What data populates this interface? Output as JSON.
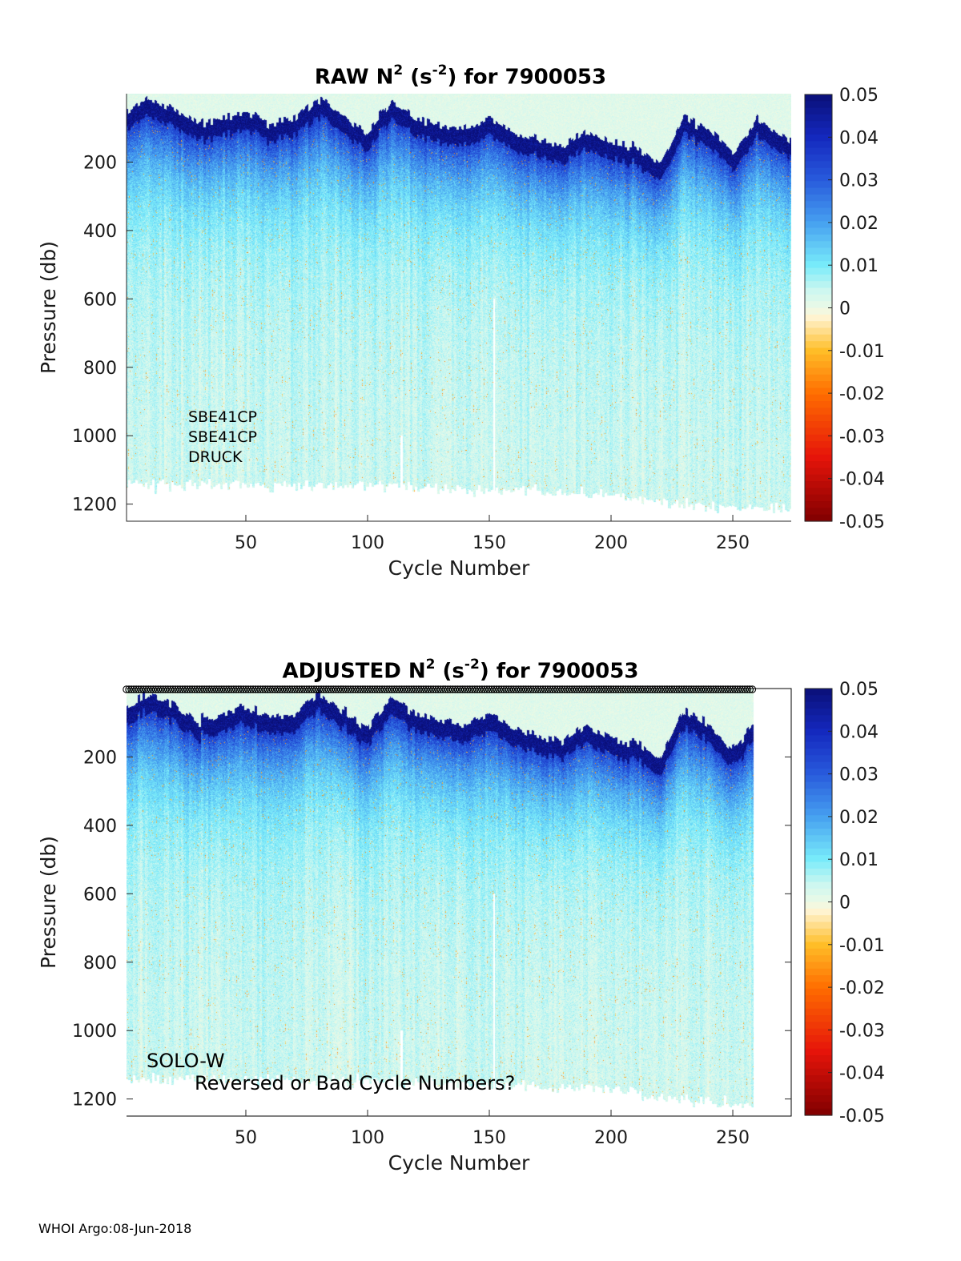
{
  "footer": "WHOI Argo:08-Jun-2018",
  "colorbar": {
    "ticks": [
      "0.05",
      "0.04",
      "0.03",
      "0.02",
      "0.01",
      "0",
      "-0.01",
      "-0.02",
      "-0.03",
      "-0.04",
      "-0.05"
    ],
    "range": [
      -0.05,
      0.05
    ]
  },
  "chart_data": [
    {
      "type": "heatmap",
      "title": "RAW N",
      "title_sup1": "2",
      "title_mid": " (s",
      "title_sup2": "-2",
      "title_end": ") for 7900053",
      "xlabel": "Cycle Number",
      "ylabel": "Pressure (db)",
      "xlim": [
        1,
        274
      ],
      "ylim": [
        0,
        1250
      ],
      "y_reversed": true,
      "xticks": [
        "50",
        "100",
        "150",
        "200",
        "250"
      ],
      "yticks": [
        "200",
        "400",
        "600",
        "800",
        "1000",
        "1200"
      ],
      "color_range": [
        -0.05,
        0.05
      ],
      "colormap": "blue-white-red diverging",
      "data_cycles": [
        1,
        274
      ],
      "mixed_layer_depth_db": [
        [
          1,
          70
        ],
        [
          10,
          30
        ],
        [
          20,
          60
        ],
        [
          30,
          110
        ],
        [
          40,
          90
        ],
        [
          50,
          70
        ],
        [
          60,
          100
        ],
        [
          70,
          90
        ],
        [
          80,
          30
        ],
        [
          90,
          80
        ],
        [
          100,
          130
        ],
        [
          110,
          40
        ],
        [
          120,
          90
        ],
        [
          130,
          110
        ],
        [
          140,
          120
        ],
        [
          150,
          90
        ],
        [
          160,
          130
        ],
        [
          170,
          150
        ],
        [
          180,
          170
        ],
        [
          190,
          120
        ],
        [
          200,
          160
        ],
        [
          210,
          170
        ],
        [
          220,
          220
        ],
        [
          230,
          80
        ],
        [
          240,
          120
        ],
        [
          250,
          190
        ],
        [
          260,
          90
        ],
        [
          274,
          160
        ]
      ],
      "max_pressure_db": [
        [
          1,
          1140
        ],
        [
          100,
          1150
        ],
        [
          150,
          1160
        ],
        [
          200,
          1170
        ],
        [
          220,
          1200
        ],
        [
          274,
          1220
        ]
      ],
      "annotations": [
        "SBE41CP",
        "SBE41CP",
        "DRUCK"
      ]
    },
    {
      "type": "heatmap",
      "title": "ADJUSTED N",
      "title_sup1": "2",
      "title_mid": " (s",
      "title_sup2": "-2",
      "title_end": ") for 7900053",
      "xlabel": "Cycle Number",
      "ylabel": "Pressure (db)",
      "xlim": [
        1,
        274
      ],
      "ylim": [
        0,
        1250
      ],
      "y_reversed": true,
      "xticks": [
        "50",
        "100",
        "150",
        "200",
        "250"
      ],
      "yticks": [
        "200",
        "400",
        "600",
        "800",
        "1000",
        "1200"
      ],
      "color_range": [
        -0.05,
        0.05
      ],
      "colormap": "blue-white-red diverging",
      "data_cycles": [
        1,
        258
      ],
      "surface_markers": "open circles at 0 db for every cycle",
      "mixed_layer_depth_db": [
        [
          1,
          70
        ],
        [
          10,
          30
        ],
        [
          20,
          60
        ],
        [
          30,
          110
        ],
        [
          40,
          90
        ],
        [
          50,
          70
        ],
        [
          60,
          100
        ],
        [
          70,
          90
        ],
        [
          80,
          30
        ],
        [
          90,
          80
        ],
        [
          100,
          130
        ],
        [
          110,
          40
        ],
        [
          120,
          90
        ],
        [
          130,
          110
        ],
        [
          140,
          120
        ],
        [
          150,
          90
        ],
        [
          160,
          130
        ],
        [
          170,
          150
        ],
        [
          180,
          170
        ],
        [
          190,
          120
        ],
        [
          200,
          160
        ],
        [
          210,
          170
        ],
        [
          220,
          220
        ],
        [
          230,
          80
        ],
        [
          240,
          120
        ],
        [
          250,
          190
        ],
        [
          258,
          120
        ]
      ],
      "max_pressure_db": [
        [
          1,
          1140
        ],
        [
          100,
          1150
        ],
        [
          150,
          1160
        ],
        [
          200,
          1170
        ],
        [
          220,
          1200
        ],
        [
          258,
          1220
        ]
      ],
      "annotations": [
        "SOLO-W",
        "Reversed or Bad Cycle Numbers?"
      ]
    }
  ]
}
